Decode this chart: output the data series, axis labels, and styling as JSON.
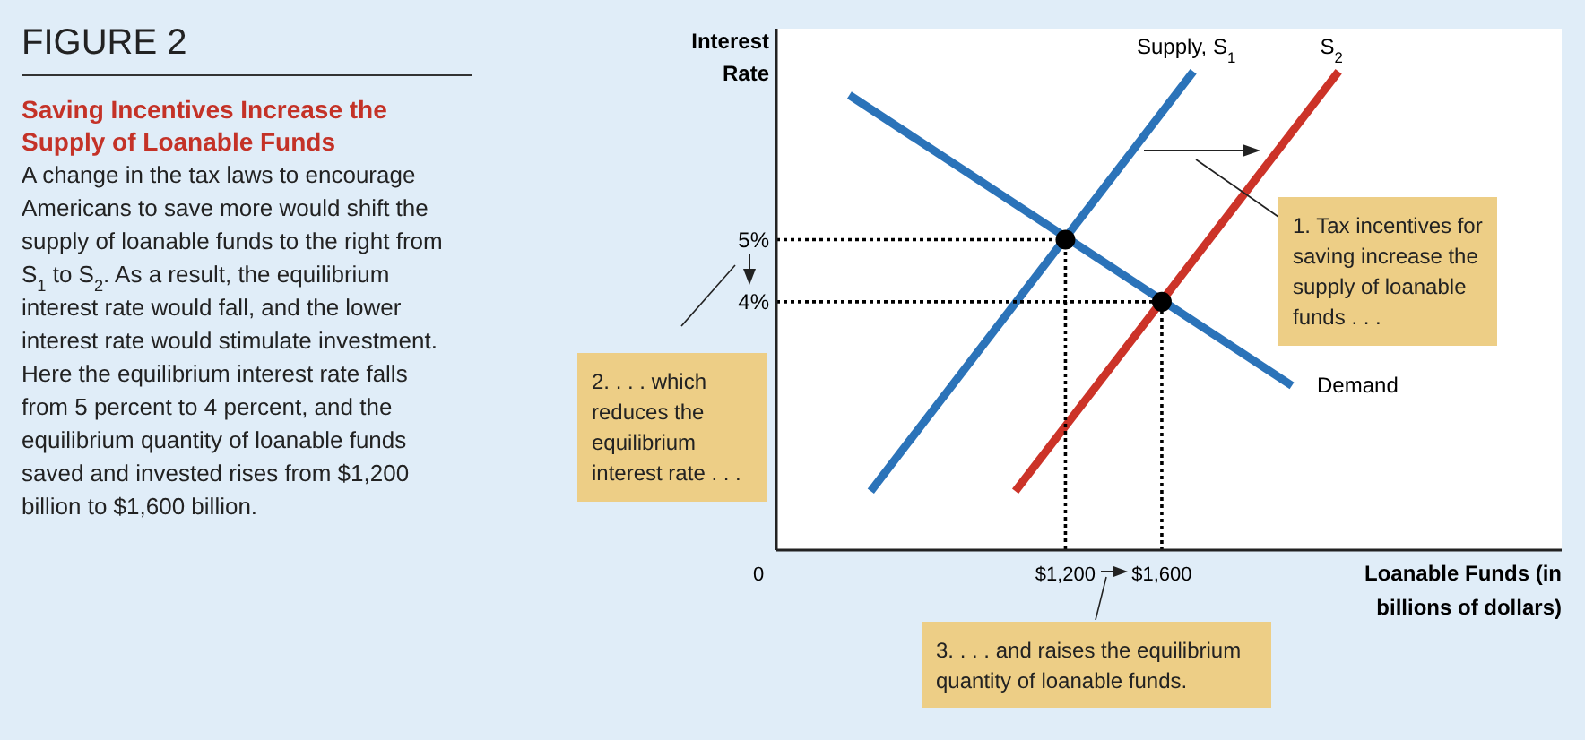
{
  "chart_data": {
    "type": "line",
    "title": "FIGURE 2",
    "subtitle": "Saving Incentives Increase the Supply of Loanable Funds",
    "xlabel": "Loanable Funds (in billions of dollars)",
    "ylabel": "Interest Rate",
    "xlim": [
      0,
      3260
    ],
    "ylim": [
      0,
      8.4
    ],
    "xticks": [
      {
        "value": 0,
        "label": "0"
      },
      {
        "value": 1200,
        "label": "$1,200"
      },
      {
        "value": 1600,
        "label": "$1,600"
      }
    ],
    "yticks": [
      {
        "value": 4,
        "label": "4%"
      },
      {
        "value": 5,
        "label": "5%"
      }
    ],
    "series": [
      {
        "name": "Supply, S$_{1}$",
        "color": "#2b73b9",
        "x": [
          392,
          1731
        ],
        "values": [
          0.95,
          7.71
        ]
      },
      {
        "name": "S$_{2}$",
        "color": "#cc3328",
        "x": [
          992,
          2334
        ],
        "values": [
          0.95,
          7.71
        ]
      },
      {
        "name": "Demand",
        "color": "#2b73b9",
        "x": [
          303,
          2140
        ],
        "values": [
          7.33,
          2.65
        ]
      },
      {
        "color": "#000000",
        "line_style": "dotted",
        "x": [
          0,
          1200,
          1200
        ],
        "values": [
          5,
          5,
          0
        ]
      },
      {
        "color": "#000000",
        "line_style": "dotted",
        "x": [
          0,
          1600,
          1600
        ],
        "values": [
          4,
          4,
          0
        ]
      },
      {
        "type": "scatter",
        "marker": "circle",
        "color": "#000000",
        "x": [
          1200,
          1600
        ],
        "values": [
          5,
          4
        ]
      }
    ],
    "annotations": [
      "A change in the tax laws to encourage Americans to save more would shift the supply of loanable funds to the right from S$_{1}$ to S$_{2}$. As a result, the equilibrium interest rate would fall, and the lower interest rate would stimulate investment. Here the equilibrium interest rate falls from 5 percent to 4 percent, and the equilibrium quantity of loanable funds saved and invested rises from $1,200 billion to $1,600 billion.",
      "1. Tax incentives for saving increase the supply of loanable funds . . .",
      "2. . . . which reduces the equilibrium interest rate . . .",
      "3. . . . and raises the equilibrium quantity of loanable funds."
    ]
  }
}
